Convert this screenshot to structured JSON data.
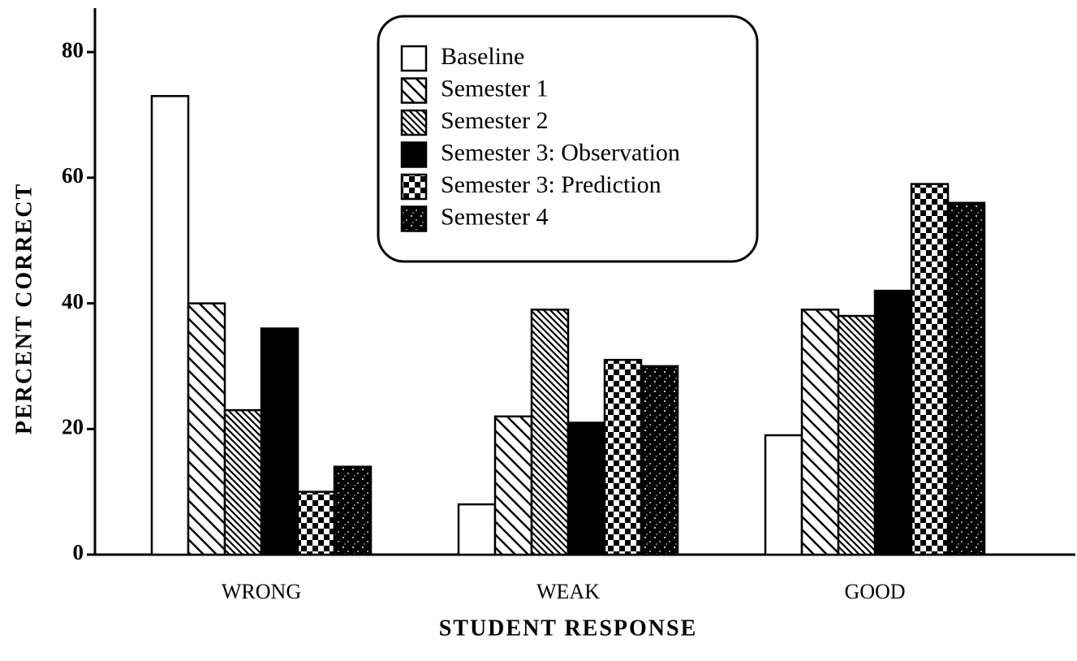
{
  "chart_data": {
    "type": "bar",
    "xlabel": "STUDENT RESPONSE",
    "ylabel": "PERCENT CORRECT",
    "categories": [
      "WRONG",
      "WEAK",
      "GOOD"
    ],
    "series": [
      {
        "name": "Baseline",
        "color": "#ffffff",
        "pattern": "none",
        "values": [
          73,
          8,
          19
        ]
      },
      {
        "name": "Semester 1",
        "color": "#000000",
        "pattern": "hatch",
        "values": [
          40,
          22,
          39
        ]
      },
      {
        "name": "Semester 2",
        "color": "#000000",
        "pattern": "dense-hatch",
        "values": [
          23,
          39,
          38
        ]
      },
      {
        "name": "Semester 3: Observation",
        "color": "#000000",
        "pattern": "solid",
        "values": [
          36,
          21,
          42
        ]
      },
      {
        "name": "Semester 3:  Prediction",
        "color": "#000000",
        "pattern": "checker",
        "values": [
          10,
          31,
          59
        ]
      },
      {
        "name": "Semester 4",
        "color": "#000000",
        "pattern": "speckle",
        "values": [
          14,
          30,
          56
        ]
      }
    ],
    "ylim": [
      0,
      87
    ],
    "yticks": [
      0,
      20,
      40,
      60,
      80
    ],
    "grid": false
  }
}
